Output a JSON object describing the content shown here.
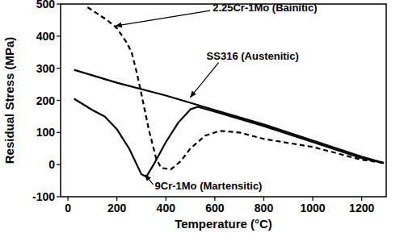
{
  "chart_data": {
    "type": "line",
    "x_label": "Temperature (°C)",
    "y_label": "Residual Stress (MPa)",
    "xlim": [
      -30,
      1300
    ],
    "ylim": [
      -100,
      500
    ],
    "xticks": [
      0,
      200,
      400,
      600,
      800,
      1000,
      1200
    ],
    "yticks": [
      -100,
      0,
      100,
      200,
      300,
      400,
      500
    ],
    "grid": false,
    "series": [
      {
        "color": "#000000",
        "line_style": "solid",
        "x": [
          25,
          200,
          400,
          600,
          800,
          1000,
          1200,
          1290
        ],
        "values": [
          295,
          255,
          215,
          170,
          125,
          75,
          25,
          5
        ]
      },
      {
        "color": "#000000",
        "line_style": "solid",
        "x": [
          25,
          100,
          150,
          200,
          250,
          300,
          320,
          350,
          400,
          450,
          500,
          530,
          600,
          800,
          1000,
          1200,
          1290
        ],
        "values": [
          205,
          170,
          150,
          110,
          50,
          -30,
          -38,
          0,
          70,
          130,
          172,
          180,
          165,
          120,
          70,
          20,
          5
        ]
      },
      {
        "color": "#000000",
        "line_style": "dashed",
        "x": [
          80,
          120,
          160,
          200,
          240,
          260,
          280,
          300,
          330,
          360,
          380,
          420,
          460,
          500,
          560,
          620,
          700,
          800,
          1000,
          1200,
          1290
        ],
        "values": [
          490,
          470,
          450,
          425,
          380,
          350,
          290,
          220,
          110,
          20,
          -10,
          -15,
          10,
          50,
          90,
          105,
          100,
          80,
          55,
          15,
          5
        ]
      }
    ],
    "annotations": [
      {
        "text": "2.25Cr-1Mo (Bainitic)",
        "x": 195,
        "y": 432
      },
      {
        "text": "SS316 (Austenitic)",
        "x": 500,
        "y": 210
      },
      {
        "text": "9Cr-1Mo (Martensitic)",
        "x": 315,
        "y": -32
      }
    ]
  }
}
